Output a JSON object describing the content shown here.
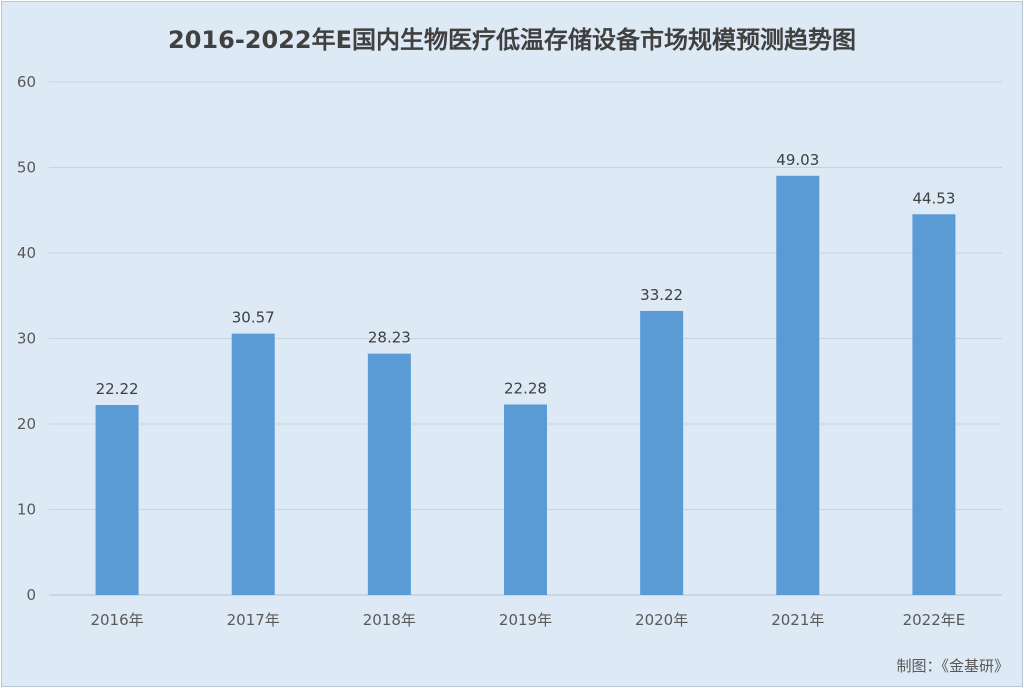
{
  "chart_data": {
    "type": "bar",
    "title": "2016-2022年E国内生物医疗低温存储设备市场规模预测趋势图",
    "categories": [
      "2016年",
      "2017年",
      "2018年",
      "2019年",
      "2020年",
      "2021年",
      "2022年E"
    ],
    "series": [
      {
        "values": [
          22.22,
          30.57,
          28.23,
          22.28,
          33.22,
          49.03,
          44.53
        ]
      }
    ],
    "data_labels": [
      "22.22",
      "30.57",
      "28.23",
      "22.28",
      "33.22",
      "49.03",
      "44.53"
    ],
    "ylim": [
      0,
      60
    ],
    "yticks": [
      0,
      10,
      20,
      30,
      40,
      50,
      60
    ],
    "xlabel": "",
    "ylabel": "",
    "grid": true,
    "legend": "none",
    "bar_color": "#5b9bd5",
    "background_color": "#dde9f4",
    "grid_color": "#c9d3dd"
  },
  "source_text": "制图：《金基研》"
}
